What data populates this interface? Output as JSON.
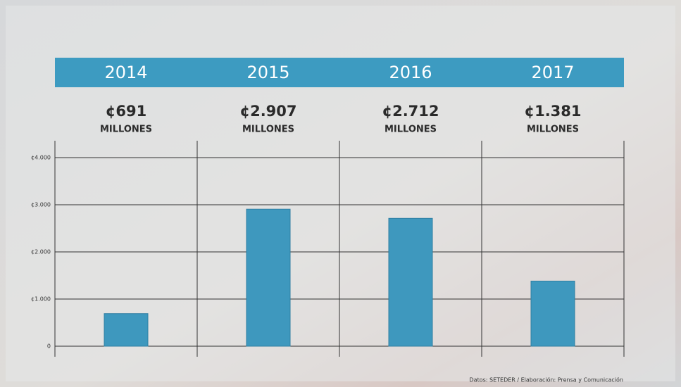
{
  "chart_data": {
    "type": "bar",
    "categories": [
      "2014",
      "2015",
      "2016",
      "2017"
    ],
    "values": [
      691,
      2907,
      2712,
      1381
    ],
    "value_labels": [
      "¢691",
      "¢2.907",
      "¢2.712",
      "¢1.381"
    ],
    "unit_label": "MILLONES",
    "color": "#3e98be",
    "header_color": "#3d9bc1",
    "ylim": [
      0,
      4000
    ],
    "yticks": [
      0,
      {
        "value": 1000,
        "label": "¢1.000"
      },
      {
        "value": 2000,
        "label": "¢2.000"
      },
      {
        "value": 3000,
        "label": "¢3.000"
      },
      {
        "value": 4000,
        "label": "¢4.000"
      }
    ],
    "grid": true,
    "source": "Datos: SETEDER / Elaboración: Prensa y Comunicación"
  }
}
